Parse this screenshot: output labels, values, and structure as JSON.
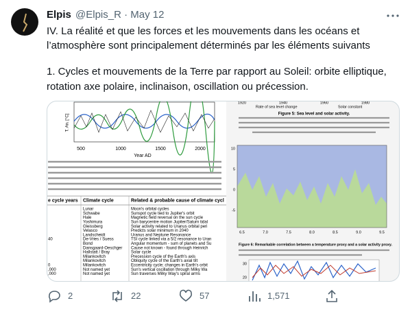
{
  "tweet": {
    "author_name": "Elpis",
    "handle": "@Elpis_R",
    "separator": "·",
    "date": "May 12",
    "text_lines": [
      "IV. La réalité et que les forces et les mouvements dans les océans et",
      "l’atmosphère sont principalement déterminés par les éléments suivants",
      "1. Cycles et mouvements de la Terre par rapport au Soleil: orbite elliptique,",
      "rotation axe polaire, inclinaison, oscillation ou précession."
    ]
  },
  "media": {
    "left_chart": {
      "y_label": "T. An. [°C]",
      "x_ticks": [
        "500",
        "1000",
        "1500",
        "2000"
      ],
      "x_label": "Year AD"
    },
    "table": {
      "header": [
        "e cycle years",
        "Climate cycle",
        "Related & probable cause of climate cycl"
      ],
      "rows": [
        {
          "climate": "Lunar",
          "cause": "Moon's orbital cycles"
        },
        {
          "climate": "Schwabe",
          "cause": "Sunspot cycle tied to Jupiter's orbit"
        },
        {
          "climate": "Hale",
          "cause": "Magnetic field reversal on the sun cycle"
        },
        {
          "climate": "Yoshimura",
          "cause": "Sun barycentre motion Jupiter/Saturn tidal"
        },
        {
          "climate": "Gleissberg",
          "cause": "Solar activity related to Uranus orbital peri"
        },
        {
          "climate": "Velasco",
          "cause": "Predicts solar minimum in 2040"
        },
        {
          "climate": "Landscheidt",
          "cause": "Uranus and Neptune Resonance"
        },
        {
          "years": "40",
          "climate": "De-Vries / Suess",
          "cause": "TSI cycle linked via a 5/2 resonance to Uran"
        },
        {
          "climate": "Bond",
          "cause": "Angular momentum - sum of planets and Su"
        },
        {
          "climate": "Dansgaard-Oeschger",
          "cause": "Cause not known - found through Heinrich"
        },
        {
          "climate": "Hallstatt / Bray",
          "cause": "Solar cycle"
        },
        {
          "climate": "Milankovitch",
          "cause": "Precession cycle of the Earth's axis"
        },
        {
          "climate": "Milankovitch",
          "cause": "Obliquity cycle of the Earth's axial tilt"
        },
        {
          "years": "0",
          "climate": "Milankovitch",
          "cause": "Eccentricity cycle; changes in Earth's orbit"
        },
        {
          "years": ",000",
          "climate": "Not named yet",
          "cause": "Sun's vertical oscillation through Milky Wa"
        },
        {
          "years": ",000",
          "climate": "Not named yet",
          "cause": "Sun traverses Milky Way's spiral arms"
        }
      ]
    },
    "right": {
      "top_ticks": [
        "1920",
        "1940",
        "1960",
        "1980"
      ],
      "legend": [
        "Rate of sea level change",
        "Solar constant"
      ],
      "figure5_title": "Figure 5: Sea level and solar activity.",
      "chart_x_ticks": [
        "6.5",
        "7.0",
        "7.5",
        "8.0",
        "8.5",
        "9.0",
        "9.5"
      ],
      "chart_y_ticks": [
        "10",
        "5",
        "0",
        "-5"
      ],
      "figure6_title": "Figure 6: Remarkable correlation between a temperature proxy and a solar activity proxy.",
      "bottom_y_ticks": [
        "30",
        "20"
      ]
    }
  },
  "actions": {
    "replies": "2",
    "retweets": "22",
    "likes": "57",
    "views": "1,571"
  }
}
